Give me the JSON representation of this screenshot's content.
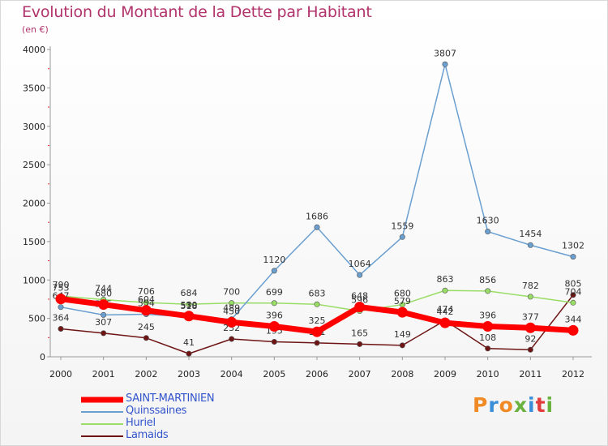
{
  "title": "Evolution du Montant de la Dette par Habitant",
  "subtitle": "(en €)",
  "logo": [
    "P",
    "r",
    "o",
    "x",
    "i",
    "t",
    "i"
  ],
  "logo_colors": [
    "#f08a24",
    "#3a8fd8",
    "#f08a24",
    "#6ab23e",
    "#3a8fd8",
    "#e23b3b",
    "#6ab23e"
  ],
  "chart_data": {
    "type": "line",
    "x": [
      "2000",
      "2001",
      "2002",
      "2003",
      "2004",
      "2005",
      "2006",
      "2007",
      "2008",
      "2009",
      "2010",
      "2011",
      "2012"
    ],
    "ylim": [
      0,
      4000
    ],
    "yticks": [
      0,
      500,
      1000,
      1500,
      2000,
      2500,
      3000,
      3500,
      4000
    ],
    "series": [
      {
        "name": "Lamaids",
        "color": "#6e1414",
        "values": [
          364,
          307,
          245,
          41,
          232,
          195,
          181,
          165,
          149,
          474,
          108,
          92,
          805
        ]
      },
      {
        "name": "Huriel",
        "color": "#99dd66",
        "values": [
          790,
          744,
          706,
          684,
          700,
          699,
          683,
          596,
          680,
          863,
          856,
          782,
          704
        ]
      },
      {
        "name": "Quinssaines",
        "color": "#6a9fd0",
        "values": [
          647,
          545,
          554,
          518,
          489,
          1120,
          1686,
          1064,
          1559,
          3807,
          1630,
          1454,
          1302
        ]
      },
      {
        "name": "SAINT-MARTINIEN",
        "color": "#ff0000",
        "values": [
          753,
          680,
          604,
          530,
          450,
          396,
          325,
          648,
          579,
          442,
          396,
          377,
          344
        ]
      }
    ]
  }
}
